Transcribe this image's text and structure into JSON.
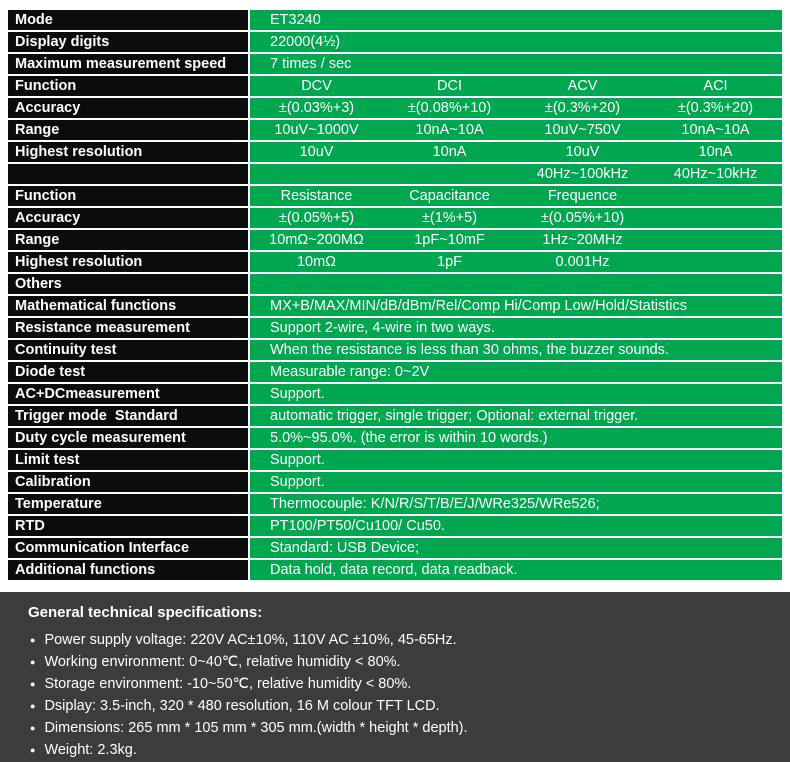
{
  "colors": {
    "green": "#00a650",
    "label_bg": "#0c0c0c",
    "panel_bg": "#3c3c3c",
    "text": "#ffffff"
  },
  "table": {
    "rows": [
      {
        "label": "Mode",
        "value": "ET3240"
      },
      {
        "label": "Display digits",
        "value": "22000(4½)"
      },
      {
        "label": "Maximum measurement speed",
        "value": "7 times / sec"
      },
      {
        "label": "Function",
        "cells": [
          "DCV",
          "DCI",
          "ACV",
          "ACI"
        ]
      },
      {
        "label": "Accuracy",
        "cells": [
          "±(0.03%+3)",
          "±(0.08%+10)",
          "±(0.3%+20)",
          "±(0.3%+20)"
        ]
      },
      {
        "label": "Range",
        "cells": [
          "10uV~1000V",
          "10nA~10A",
          "10uV~750V",
          "10nA~10A"
        ]
      },
      {
        "label": "Highest resolution",
        "cells": [
          "10uV",
          "10nA",
          "10uV",
          "10nA"
        ]
      },
      {
        "label": "",
        "cells": [
          "",
          "",
          "40Hz~100kHz",
          "40Hz~10kHz"
        ]
      },
      {
        "label": "Function",
        "cells": [
          "Resistance",
          "Capacitance",
          "Frequence",
          ""
        ]
      },
      {
        "label": "Accuracy",
        "cells": [
          "±(0.05%+5)",
          "±(1%+5)",
          "±(0.05%+10)",
          ""
        ]
      },
      {
        "label": "Range",
        "cells": [
          "10mΩ~200MΩ",
          "1pF~10mF",
          "1Hz~20MHz",
          ""
        ]
      },
      {
        "label": "Highest resolution",
        "cells": [
          "10mΩ",
          "1pF",
          "0.001Hz",
          ""
        ]
      },
      {
        "label": "Others",
        "value": ""
      },
      {
        "label": "Mathematical functions",
        "value": "MX+B/MAX/MIN/dB/dBm/Rel/Comp Hi/Comp Low/Hold/Statistics"
      },
      {
        "label": "Resistance measurement",
        "value": "Support 2-wire, 4-wire in two ways."
      },
      {
        "label": "Continuity test",
        "value": "When the resistance is less than 30 ohms, the buzzer sounds."
      },
      {
        "label": "Diode test",
        "value": "Measurable range: 0~2V"
      },
      {
        "label": "AC+DCmeasurement",
        "value": "Support."
      },
      {
        "label": "Trigger mode  Standard",
        "value": "automatic trigger, single trigger; Optional: external trigger."
      },
      {
        "label": "Duty cycle measurement",
        "value": "5.0%~95.0%. (the error is within 10 words.)"
      },
      {
        "label": "Limit test",
        "value": "Support."
      },
      {
        "label": "Calibration",
        "value": "Support."
      },
      {
        "label": "Temperature",
        "value": "Thermocouple: K/N/R/S/T/B/E/J/WRe325/WRe526;"
      },
      {
        "label": "RTD",
        "value": "PT100/PT50/Cu100/ Cu50."
      },
      {
        "label": "Communication Interface",
        "value": "Standard: USB Device;"
      },
      {
        "label": "Additional functions",
        "value": "Data hold, data record, data readback."
      }
    ]
  },
  "general": {
    "heading": "General technical specifications:",
    "bullets": [
      "Power supply voltage: 220V AC±10%, 110V AC ±10%, 45-65Hz.",
      "Working environment: 0~40℃, relative humidity < 80%.",
      "Storage environment: -10~50℃, relative humidity < 80%.",
      "Dsiplay: 3.5-inch, 320 * 480 resolution, 16 M colour TFT LCD.",
      "Dimensions: 265 mm * 105 mm * 305 mm.(width * height * depth).",
      "Weight: 2.3kg."
    ]
  }
}
